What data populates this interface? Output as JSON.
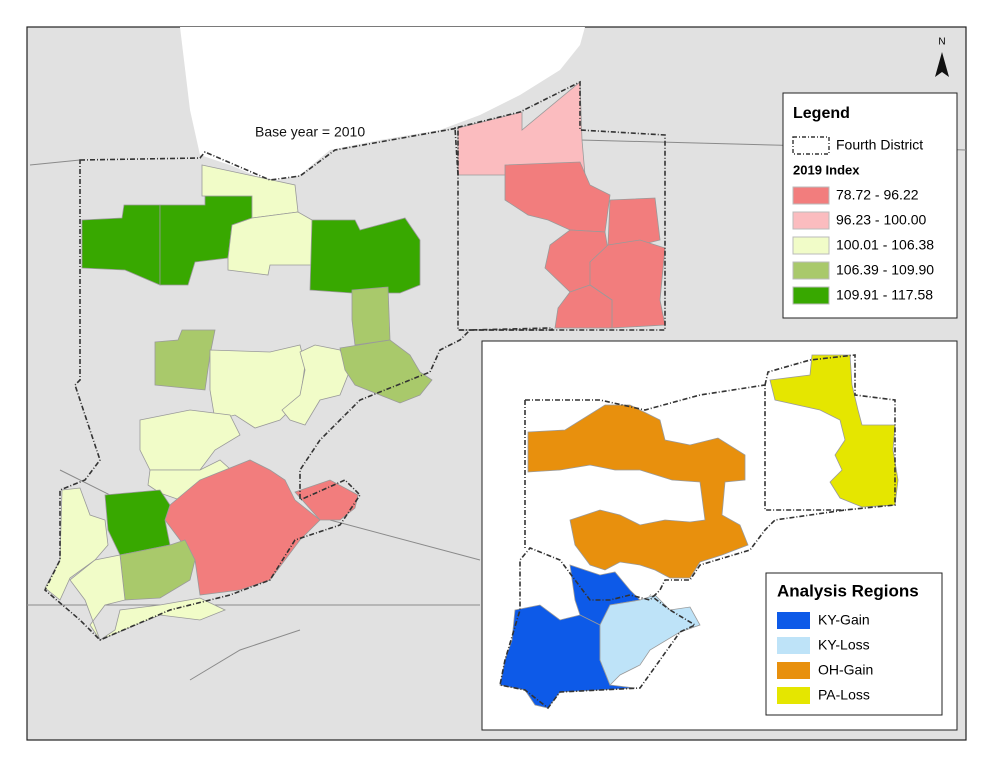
{
  "map": {
    "annotation": "Base year = 2010",
    "north_label": "N"
  },
  "legend": {
    "title": "Legend",
    "boundary_label": "Fourth District",
    "subtitle": "2019 Index",
    "items": [
      {
        "label": "78.72 - 96.22",
        "color": "#f27d7d"
      },
      {
        "label": "96.23 - 100.00",
        "color": "#fbbcbf"
      },
      {
        "label": "100.01 - 106.38",
        "color": "#f1fcc8"
      },
      {
        "label": "106.39 - 109.90",
        "color": "#a9c96b"
      },
      {
        "label": "109.91 - 117.58",
        "color": "#38a800"
      }
    ]
  },
  "inset_legend": {
    "title": "Analysis Regions",
    "items": [
      {
        "label": "KY-Gain",
        "color": "#0d5ae8"
      },
      {
        "label": "KY-Loss",
        "color": "#bee3f8"
      },
      {
        "label": "OH-Gain",
        "color": "#e8900d"
      },
      {
        "label": "PA-Loss",
        "color": "#e5e600"
      }
    ]
  }
}
